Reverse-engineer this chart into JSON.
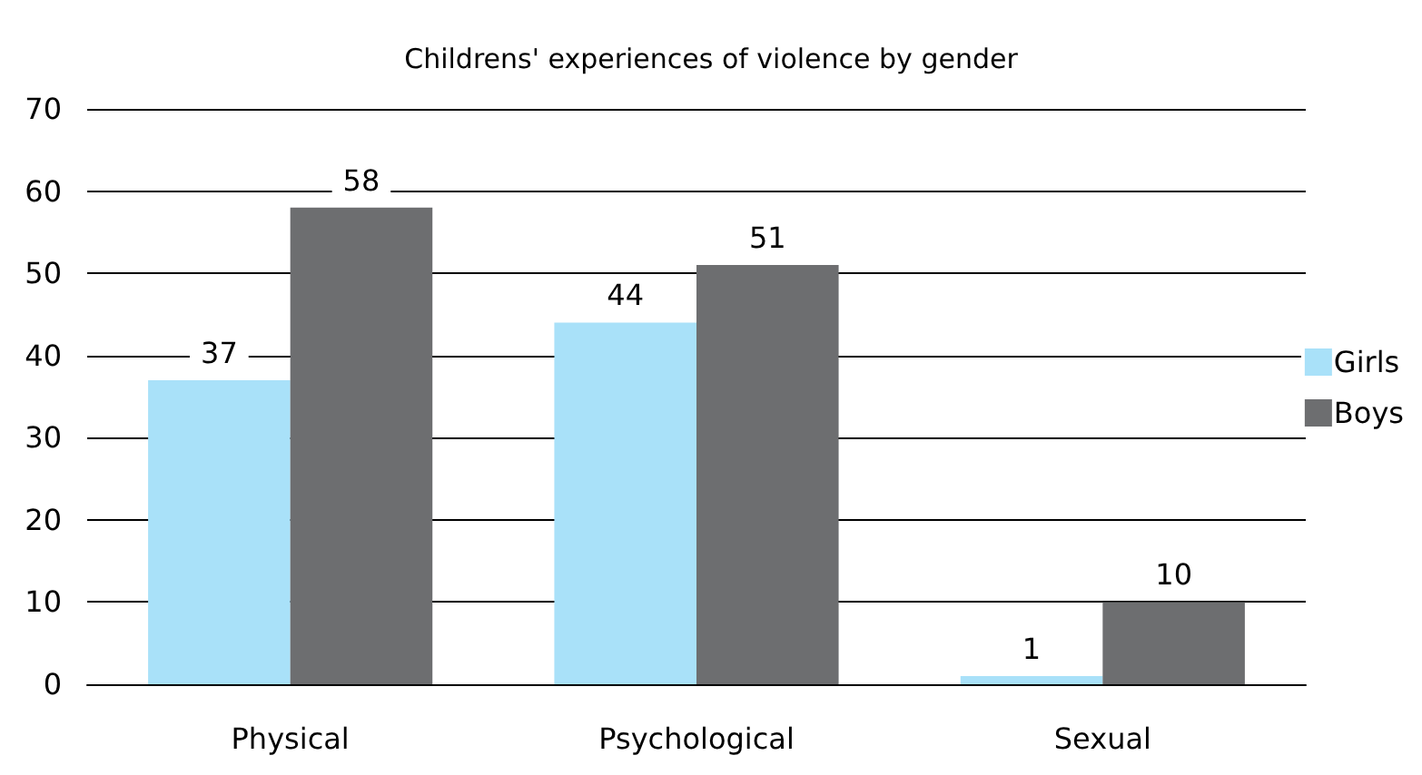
{
  "chart_data": {
    "type": "bar",
    "title": "Childrens' experiences of violence by gender",
    "categories": [
      "Physical",
      "Psychological",
      "Sexual"
    ],
    "series": [
      {
        "name": "Girls",
        "color": "#a9e1f9",
        "values": [
          37,
          44,
          1
        ]
      },
      {
        "name": "Boys",
        "color": "#6d6e70",
        "values": [
          58,
          51,
          10
        ]
      }
    ],
    "ylim": [
      0,
      70
    ],
    "yticks": [
      0,
      10,
      20,
      30,
      40,
      50,
      60,
      70
    ],
    "grid": "y",
    "legend": "right",
    "data_labels": true
  }
}
